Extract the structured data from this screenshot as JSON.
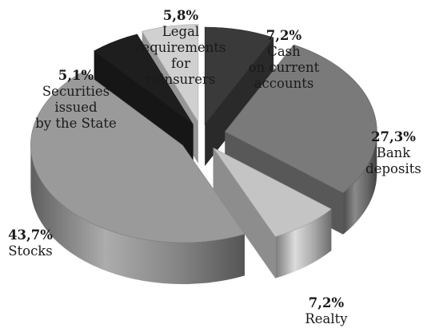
{
  "chart_data": {
    "type": "pie",
    "style": "3d-exploded",
    "slices": [
      {
        "label": "Cash\non current\naccounts",
        "value": 7.2,
        "value_text": "7,2%",
        "color": "#3a3a3a"
      },
      {
        "label": "Bank\ndeposits",
        "value": 27.3,
        "value_text": "27,3%",
        "color": "#7a7a7a"
      },
      {
        "label": "Realty",
        "value": 7.2,
        "value_text": "7,2%",
        "color": "#c4c4c4"
      },
      {
        "label": "Stocks",
        "value": 43.7,
        "value_text": "43,7%",
        "color": "#9a9a9a"
      },
      {
        "label": "Securities\nissued\nby the State",
        "value": 5.1,
        "value_text": "5,1%",
        "color": "#1e1e1e"
      },
      {
        "label": "Legal\nrequirements\nfor\nreinsurers",
        "value": 5.8,
        "value_text": "5,8%",
        "color": "#d0d0d0"
      }
    ]
  }
}
